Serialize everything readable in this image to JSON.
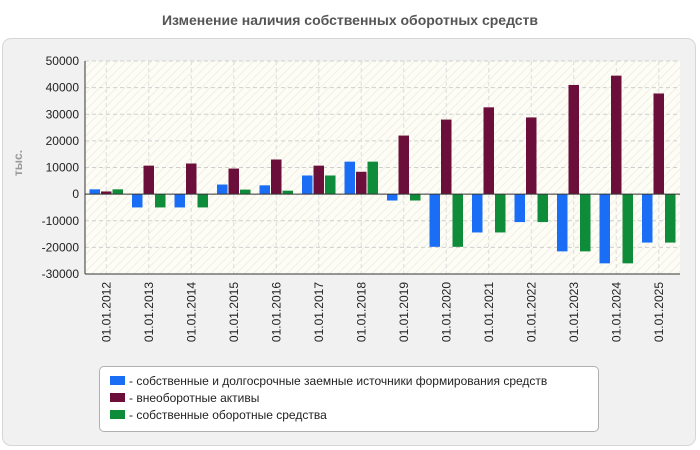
{
  "chart_data": {
    "type": "bar",
    "title": "Изменение наличия собственных оборотных средств",
    "ylabel": "тыс.",
    "xlabel": "",
    "ylim": [
      -30000,
      50000
    ],
    "yticks": [
      50000,
      40000,
      30000,
      20000,
      10000,
      0,
      -10000,
      -20000,
      -30000
    ],
    "grid": true,
    "legend_position": "bottom",
    "categories": [
      "01.01.2012",
      "01.01.2013",
      "01.01.2014",
      "01.01.2015",
      "01.01.2016",
      "01.01.2017",
      "01.01.2018",
      "01.01.2019",
      "01.01.2020",
      "01.01.2021",
      "01.01.2022",
      "01.01.2023",
      "01.01.2024",
      "01.01.2025"
    ],
    "series": [
      {
        "name": "собственные и долгосрочные заемные источники формирования средств",
        "color": "#1a6ef5",
        "values": [
          1800,
          -5000,
          -5000,
          3600,
          3300,
          7000,
          12200,
          -2400,
          -19800,
          -14400,
          -10500,
          -21500,
          -26000,
          -18200
        ]
      },
      {
        "name": "внеоборотные активы",
        "color": "#6b0f3a",
        "values": [
          1000,
          10700,
          11500,
          9600,
          13000,
          10700,
          8400,
          22000,
          28000,
          32600,
          28800,
          41000,
          44500,
          37800
        ]
      },
      {
        "name": "собственные оборотные средства",
        "color": "#0e8c3a",
        "values": [
          1800,
          -5000,
          -5000,
          1700,
          1300,
          7000,
          12200,
          -2400,
          -19800,
          -14400,
          -10500,
          -21500,
          -26000,
          -18200
        ]
      }
    ]
  }
}
